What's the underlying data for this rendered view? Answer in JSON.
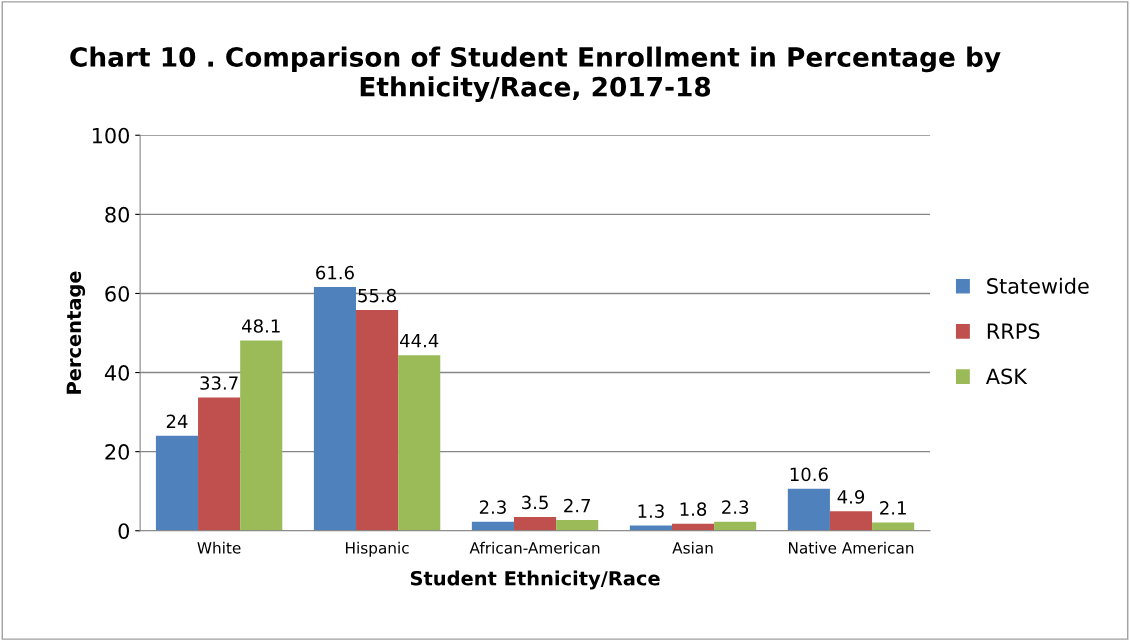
{
  "chart_data": {
    "type": "bar",
    "title": "Chart 10 . Comparison of Student Enrollment in Percentage by\nEthnicity/Race, 2017-18",
    "xlabel": "Student Ethnicity/Race",
    "ylabel": "Percentage",
    "categories": [
      "White",
      "Hispanic",
      "African-American",
      "Asian",
      "Native American"
    ],
    "series": [
      {
        "name": "Statewide",
        "color": "#4f81bd",
        "values": [
          24,
          61.6,
          2.3,
          1.3,
          10.6
        ]
      },
      {
        "name": "RRPS",
        "color": "#c0504d",
        "values": [
          33.7,
          55.8,
          3.5,
          1.8,
          4.9
        ]
      },
      {
        "name": "ASK",
        "color": "#9bbb59",
        "values": [
          48.1,
          44.4,
          2.7,
          2.3,
          2.1
        ]
      }
    ],
    "ylim": [
      0,
      100
    ],
    "yticks": [
      0,
      20,
      40,
      60,
      80,
      100
    ],
    "grid": "y",
    "legend": "right",
    "data_labels": true
  }
}
